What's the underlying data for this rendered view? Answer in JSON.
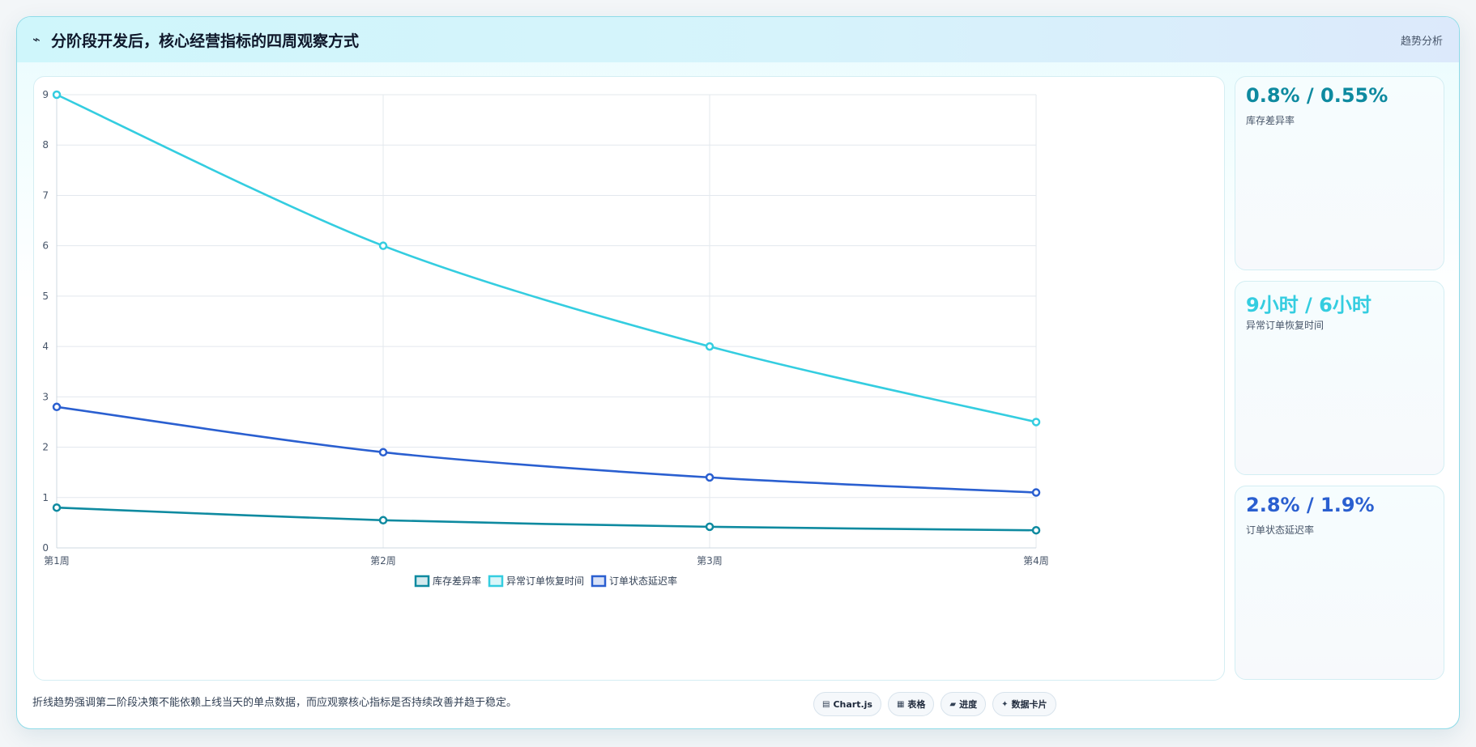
{
  "header": {
    "icon": "trend-icon",
    "title": "分阶段开发后，核心经营指标的四周观察方式",
    "tag": "趋势分析"
  },
  "chart_data": {
    "type": "line",
    "categories": [
      "第1周",
      "第2周",
      "第3周",
      "第4周"
    ],
    "series": [
      {
        "name": "库存差异率",
        "values": [
          0.8,
          0.55,
          0.42,
          0.35
        ],
        "color": "#0e8aa0"
      },
      {
        "name": "异常订单恢复时间",
        "values": [
          9,
          6,
          4,
          2.5
        ],
        "color": "#34cde0"
      },
      {
        "name": "订单状态延迟率",
        "values": [
          2.8,
          1.9,
          1.4,
          1.1
        ],
        "color": "#2a5fd0"
      }
    ],
    "ylim": [
      0,
      9
    ],
    "yticks": [
      "0",
      "1",
      "2",
      "3",
      "4",
      "5",
      "6",
      "7",
      "8",
      "9"
    ],
    "grid": true,
    "legend_position": "bottom"
  },
  "cards": [
    {
      "value": "0.8% / 0.55%",
      "label": "库存差异率",
      "color": "#0e8aa0"
    },
    {
      "value": "9小时 / 6小时",
      "label": "异常订单恢复时间",
      "color": "#34cde0"
    },
    {
      "value": "2.8% / 1.9%",
      "label": "订单状态延迟率",
      "color": "#2a5fd0"
    }
  ],
  "footer": {
    "note": "折线趋势强调第二阶段决策不能依赖上线当天的单点数据，而应观察核心指标是否持续改善并趋于稳定。",
    "pills": [
      {
        "icon": "chart-icon",
        "glyph": "▤",
        "label": "Chart.js"
      },
      {
        "icon": "table-icon",
        "glyph": "▦",
        "label": "表格"
      },
      {
        "icon": "progress-icon",
        "glyph": "▰",
        "label": "进度"
      },
      {
        "icon": "data-card-icon",
        "glyph": "✦",
        "label": "数据卡片"
      }
    ]
  }
}
